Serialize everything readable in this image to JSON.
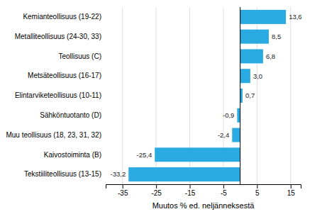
{
  "chart_data": {
    "type": "bar",
    "orientation": "horizontal",
    "categories": [
      "Tekstiiliteollisuus (13-15)",
      "Kaivostoiminta (B)",
      "Muu teollisuus (18, 23, 31, 32)",
      "Sähköntuotanto (D)",
      "Elintarviketeollisuus (10-11)",
      "Metsäteollisuus (16-17)",
      "Teollisuus (C)",
      "Metalliteollisuus (24-30, 33)",
      "Kemianteollisuus (19-22)"
    ],
    "values": [
      -33.2,
      -25.4,
      -2.4,
      -0.9,
      0.7,
      3.0,
      6.8,
      8.5,
      13.6
    ],
    "value_labels": [
      "-33,2",
      "-25,4",
      "-2,4",
      "-0,9",
      "0,7",
      "3,0",
      "6,8",
      "8,5",
      "13,6"
    ],
    "data_labels": true,
    "color": "#29abe2",
    "xlabel": "Muutos % ed. neljänneksestä",
    "xlim": [
      -40,
      18
    ],
    "xticks": [
      -35,
      -25,
      -15,
      -5,
      5,
      15
    ],
    "grid": true
  }
}
